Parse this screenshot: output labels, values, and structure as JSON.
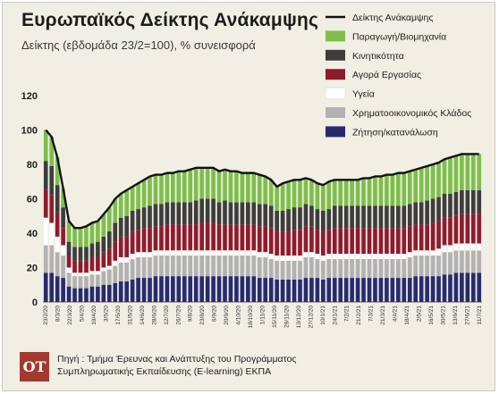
{
  "header": {
    "title": "Ευρωπαϊκός Δείκτης Ανάκαμψης",
    "subtitle": "Δείκτης (εβδομάδα 23/2=100), % συνεισφορά"
  },
  "source": {
    "line1": "Πηγή : Τμήμα Έρευνας και Ανάπτυξης του Προγράμματος",
    "line2": "Συμπληρωματικής Εκπαίδευσης (E-learning) ΕΚΠΑ",
    "logo_text": "OT"
  },
  "chart_data": {
    "type": "bar",
    "stacked": true,
    "ylim": [
      0,
      120
    ],
    "yticks": [
      0,
      20,
      40,
      60,
      80,
      100,
      120
    ],
    "grid": false,
    "legend_position": "top-right",
    "line_series": {
      "name": "Δείκτης Ανάκαμψης",
      "color": "#111111",
      "values": [
        100,
        96,
        84,
        66,
        47,
        43,
        43,
        44,
        46,
        47,
        51,
        55,
        60,
        63,
        65,
        67,
        69,
        71,
        73,
        74,
        74,
        75,
        75,
        76,
        76,
        77,
        78,
        78,
        78,
        78,
        76,
        77,
        76,
        76,
        75,
        75,
        75,
        74,
        73,
        71,
        67,
        69,
        70,
        71,
        71,
        72,
        71,
        69,
        68,
        70,
        71,
        71,
        71,
        71,
        71,
        72,
        72,
        73,
        73,
        74,
        74,
        75,
        75,
        76,
        77,
        78,
        79,
        80,
        81,
        83,
        84,
        85,
        86,
        86,
        86,
        86
      ]
    },
    "series": [
      {
        "name": "Ζήτηση/κατανάλωση",
        "color": "#272b6e",
        "values": [
          17,
          17,
          15,
          14,
          9,
          8,
          8,
          8,
          9,
          9,
          10,
          10,
          11,
          12,
          12,
          13,
          14,
          14,
          14,
          15,
          15,
          15,
          15,
          15,
          15,
          15,
          15,
          15,
          15,
          15,
          15,
          15,
          15,
          15,
          15,
          15,
          15,
          14,
          14,
          14,
          13,
          13,
          13,
          13,
          13,
          14,
          14,
          14,
          13,
          14,
          14,
          14,
          14,
          14,
          14,
          14,
          14,
          14,
          14,
          14,
          14,
          14,
          14,
          14,
          15,
          15,
          15,
          15,
          15,
          16,
          16,
          17,
          17,
          17,
          17,
          17
        ]
      },
      {
        "name": "Χρηματοοικονομικός Κλάδος",
        "color": "#b2b2b2",
        "values": [
          16,
          16,
          14,
          13,
          8,
          7,
          7,
          7,
          7,
          7,
          8,
          9,
          10,
          11,
          11,
          12,
          12,
          12,
          12,
          12,
          12,
          12,
          12,
          12,
          12,
          12,
          12,
          12,
          12,
          12,
          12,
          12,
          12,
          12,
          12,
          12,
          12,
          12,
          12,
          11,
          11,
          11,
          11,
          11,
          11,
          12,
          12,
          11,
          11,
          11,
          11,
          11,
          11,
          11,
          11,
          11,
          11,
          11,
          11,
          11,
          11,
          11,
          11,
          12,
          12,
          12,
          12,
          12,
          12,
          13,
          13,
          13,
          13,
          13,
          13,
          13
        ]
      },
      {
        "name": "Υγεία",
        "color": "#ffffff",
        "values": [
          16,
          13,
          9,
          6,
          3,
          2,
          2,
          2,
          2,
          2,
          2,
          2,
          3,
          3,
          3,
          3,
          3,
          3,
          3,
          3,
          3,
          3,
          3,
          3,
          3,
          3,
          3,
          3,
          3,
          3,
          3,
          3,
          3,
          3,
          3,
          3,
          3,
          3,
          3,
          3,
          3,
          3,
          3,
          3,
          3,
          3,
          3,
          3,
          3,
          3,
          3,
          3,
          3,
          3,
          3,
          3,
          3,
          3,
          3,
          3,
          3,
          3,
          3,
          3,
          3,
          3,
          3,
          3,
          4,
          4,
          4,
          4,
          4,
          4,
          4,
          4
        ]
      },
      {
        "name": "Αγορά Εργασίας",
        "color": "#8e1b2f",
        "values": [
          16,
          16,
          14,
          10,
          7,
          7,
          7,
          7,
          8,
          8,
          9,
          10,
          11,
          12,
          12,
          13,
          13,
          14,
          14,
          14,
          14,
          15,
          15,
          15,
          15,
          15,
          15,
          16,
          16,
          16,
          15,
          15,
          15,
          15,
          15,
          15,
          15,
          15,
          15,
          15,
          14,
          14,
          14,
          15,
          15,
          15,
          15,
          14,
          14,
          14,
          15,
          15,
          15,
          15,
          15,
          15,
          15,
          15,
          15,
          15,
          15,
          15,
          15,
          15,
          15,
          15,
          15,
          16,
          16,
          16,
          16,
          16,
          17,
          17,
          17,
          17
        ]
      },
      {
        "name": "Κινητικότητα",
        "color": "#3d3d3d",
        "values": [
          17,
          17,
          16,
          12,
          8,
          8,
          8,
          8,
          8,
          9,
          9,
          10,
          11,
          11,
          12,
          12,
          12,
          12,
          13,
          13,
          13,
          13,
          13,
          13,
          13,
          13,
          14,
          14,
          14,
          14,
          13,
          14,
          13,
          13,
          13,
          13,
          13,
          13,
          13,
          13,
          12,
          12,
          13,
          13,
          13,
          13,
          12,
          12,
          12,
          12,
          13,
          13,
          13,
          13,
          13,
          13,
          13,
          13,
          13,
          13,
          13,
          13,
          13,
          13,
          13,
          13,
          14,
          14,
          14,
          14,
          14,
          14,
          14,
          14,
          14,
          14
        ]
      },
      {
        "name": "Παραγωγή/Βιομηχανία",
        "color": "#7cbf4a",
        "values": [
          18,
          17,
          16,
          11,
          12,
          11,
          11,
          12,
          12,
          12,
          13,
          14,
          14,
          14,
          15,
          14,
          15,
          16,
          17,
          17,
          17,
          17,
          17,
          18,
          18,
          19,
          19,
          18,
          18,
          18,
          18,
          18,
          18,
          18,
          17,
          17,
          17,
          17,
          16,
          15,
          14,
          16,
          16,
          16,
          16,
          15,
          15,
          15,
          15,
          16,
          15,
          15,
          15,
          15,
          15,
          16,
          16,
          17,
          17,
          18,
          18,
          19,
          19,
          19,
          19,
          20,
          20,
          20,
          20,
          20,
          21,
          21,
          21,
          21,
          21,
          21
        ]
      }
    ],
    "x_tick_labels": [
      "23/2/20",
      "8/3/20",
      "22/3/20",
      "5/4/20",
      "19/4/20",
      "3/5/20",
      "17/5/20",
      "31/5/20",
      "14/6/20",
      "28/6/20",
      "12/7/20",
      "26/7/20",
      "9/8/20",
      "23/8/20",
      "6/9/20",
      "20/9/20",
      "4/10/20",
      "18/10/20",
      "1/11/20",
      "15/11/20",
      "29/11/20",
      "13/12/20",
      "27/12/20",
      "10/1/21",
      "24/1/21",
      "7/2/21",
      "21/2/21",
      "7/3/21",
      "21/3/21",
      "4/4/21",
      "18/4/21",
      "2/5/21",
      "16/5/21",
      "30/5/21",
      "13/6/21",
      "27/6/21",
      "11/7/21"
    ]
  }
}
